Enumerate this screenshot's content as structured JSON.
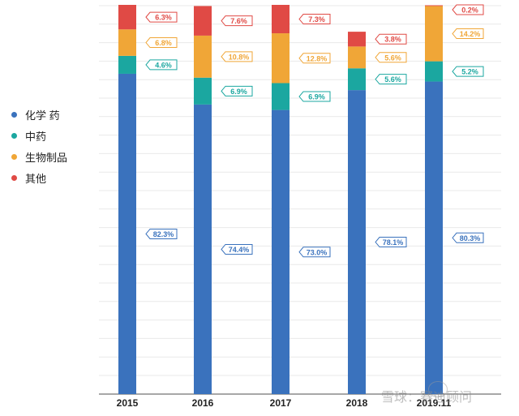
{
  "chart_data": {
    "type": "bar",
    "stacked": true,
    "categories": [
      "2015",
      "2016",
      "2017",
      "2018",
      "2019.11"
    ],
    "series": [
      {
        "name": "化学药",
        "color": "#3a72bd",
        "values": [
          82.3,
          74.4,
          73.0,
          78.1,
          80.3
        ],
        "labels": [
          "82.3%",
          "74.4%",
          "73.0%",
          "78.1%",
          "80.3%"
        ]
      },
      {
        "name": "中药",
        "color": "#1ba7a0",
        "values": [
          4.6,
          6.9,
          6.9,
          5.6,
          5.2
        ],
        "labels": [
          "4.6%",
          "6.9%",
          "6.9%",
          "5.6%",
          "5.2%"
        ]
      },
      {
        "name": "生物制品",
        "color": "#f0a637",
        "values": [
          6.8,
          10.8,
          12.8,
          5.6,
          14.2
        ],
        "labels": [
          "6.8%",
          "10.8%",
          "12.8%",
          "5.6%",
          "14.2%"
        ]
      },
      {
        "name": "其他",
        "color": "#e04a45",
        "values": [
          6.3,
          7.6,
          7.3,
          3.8,
          0.2
        ],
        "labels": [
          "6.3%",
          "7.6%",
          "7.3%",
          "3.8%",
          "0.2%"
        ]
      }
    ],
    "ylim": [
      0,
      100
    ],
    "grid": true,
    "legend_position": "left"
  },
  "legend": {
    "items": [
      {
        "label": "化学 药",
        "color": "#3a72bd"
      },
      {
        "label": "中药",
        "color": "#1ba7a0"
      },
      {
        "label": "生物制品",
        "color": "#f0a637"
      },
      {
        "label": "其他",
        "color": "#e04a45"
      }
    ]
  },
  "watermark": {
    "text": "雪球：赛迪顾问"
  }
}
